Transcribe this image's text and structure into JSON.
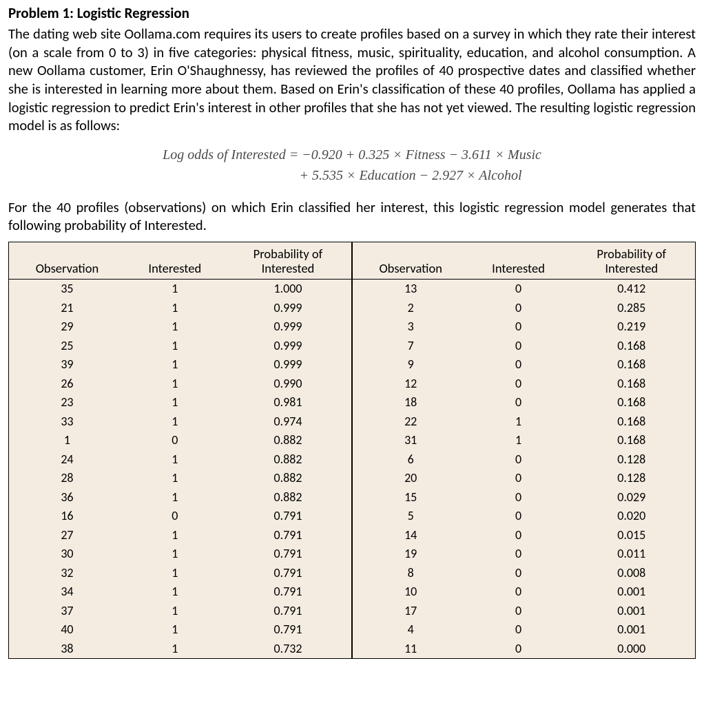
{
  "heading": "Problem 1: Logistic Regression",
  "para1": "The dating web site Oollama.com requires its users to create profiles based on a survey in which they rate their interest (on a scale from 0 to 3) in five categories: physical fitness, music, spirituality, education, and alcohol consumption. A new Oollama customer, Erin O'Shaughnessy, has reviewed the profiles of 40 prospective dates and classified whether she is interested in learning more about them. Based on Erin's classification of these 40 profiles, Oollama has applied a logistic regression to predict Erin's interest in other profiles that she has not yet viewed. The resulting logistic regression model is as follows:",
  "equation": {
    "line1": "Log odds of Interested = −0.920 + 0.325 × Fitness − 3.611 × Music",
    "line2": "+ 5.535 × Education − 2.927 × Alcohol"
  },
  "para2": "For the 40 profiles (observations) on which Erin classified her interest, this logistic regression model generates that following probability of Interested.",
  "table": {
    "type": "table",
    "background_color": "#f4ece1",
    "border_color": "#000000",
    "font_family": "Gill Sans",
    "header_fontsize": 18.5,
    "cell_fontsize": 18,
    "columns": [
      "Observation",
      "Interested",
      "Probability of Interested"
    ],
    "col3_header_l1": "Probability of",
    "col3_header_l2": "Interested",
    "left_rows": [
      [
        "35",
        "1",
        "1.000"
      ],
      [
        "21",
        "1",
        "0.999"
      ],
      [
        "29",
        "1",
        "0.999"
      ],
      [
        "25",
        "1",
        "0.999"
      ],
      [
        "39",
        "1",
        "0.999"
      ],
      [
        "26",
        "1",
        "0.990"
      ],
      [
        "23",
        "1",
        "0.981"
      ],
      [
        "33",
        "1",
        "0.974"
      ],
      [
        "1",
        "0",
        "0.882"
      ],
      [
        "24",
        "1",
        "0.882"
      ],
      [
        "28",
        "1",
        "0.882"
      ],
      [
        "36",
        "1",
        "0.882"
      ],
      [
        "16",
        "0",
        "0.791"
      ],
      [
        "27",
        "1",
        "0.791"
      ],
      [
        "30",
        "1",
        "0.791"
      ],
      [
        "32",
        "1",
        "0.791"
      ],
      [
        "34",
        "1",
        "0.791"
      ],
      [
        "37",
        "1",
        "0.791"
      ],
      [
        "40",
        "1",
        "0.791"
      ],
      [
        "38",
        "1",
        "0.732"
      ]
    ],
    "right_rows": [
      [
        "13",
        "0",
        "0.412"
      ],
      [
        "2",
        "0",
        "0.285"
      ],
      [
        "3",
        "0",
        "0.219"
      ],
      [
        "7",
        "0",
        "0.168"
      ],
      [
        "9",
        "0",
        "0.168"
      ],
      [
        "12",
        "0",
        "0.168"
      ],
      [
        "18",
        "0",
        "0.168"
      ],
      [
        "22",
        "1",
        "0.168"
      ],
      [
        "31",
        "1",
        "0.168"
      ],
      [
        "6",
        "0",
        "0.128"
      ],
      [
        "20",
        "0",
        "0.128"
      ],
      [
        "15",
        "0",
        "0.029"
      ],
      [
        "5",
        "0",
        "0.020"
      ],
      [
        "14",
        "0",
        "0.015"
      ],
      [
        "19",
        "0",
        "0.011"
      ],
      [
        "8",
        "0",
        "0.008"
      ],
      [
        "10",
        "0",
        "0.001"
      ],
      [
        "17",
        "0",
        "0.001"
      ],
      [
        "4",
        "0",
        "0.001"
      ],
      [
        "11",
        "0",
        "0.000"
      ]
    ]
  }
}
